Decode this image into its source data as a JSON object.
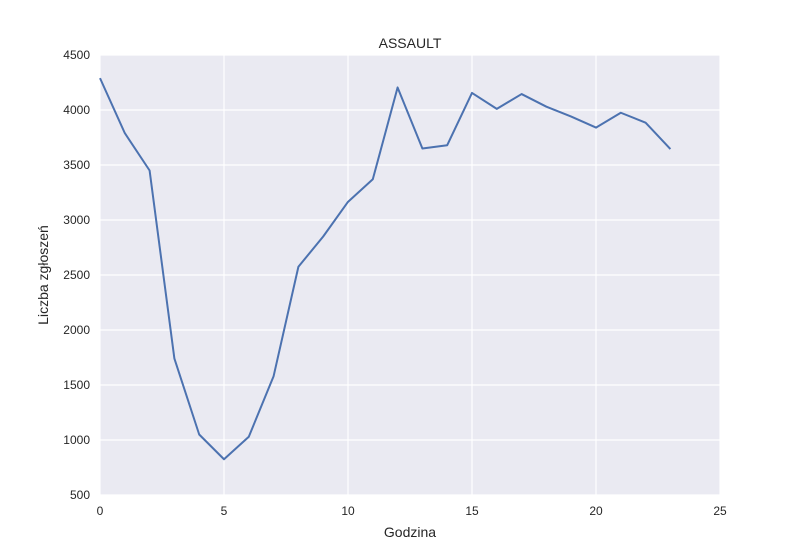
{
  "chart_data": {
    "type": "line",
    "title": "ASSAULT",
    "xlabel": "Godzina",
    "ylabel": "Liczba zgłoszeń",
    "xlim": [
      0,
      25
    ],
    "ylim": [
      500,
      4500
    ],
    "xticks": [
      0,
      5,
      10,
      15,
      20,
      25
    ],
    "yticks": [
      500,
      1000,
      1500,
      2000,
      2500,
      3000,
      3500,
      4000,
      4500
    ],
    "grid": true,
    "colors": {
      "line": "#4c72b0",
      "plot_bg": "#eaeaf2",
      "grid": "#ffffff"
    },
    "x": [
      0,
      1,
      2,
      3,
      4,
      5,
      6,
      7,
      8,
      9,
      10,
      11,
      12,
      13,
      14,
      15,
      16,
      17,
      18,
      19,
      20,
      21,
      22,
      23
    ],
    "series": [
      {
        "values": [
          4290,
          3790,
          3450,
          1740,
          1050,
          825,
          1030,
          1580,
          2575,
          2850,
          3165,
          3370,
          4205,
          3650,
          3680,
          4155,
          4010,
          4145,
          4030,
          3940,
          3840,
          3975,
          3885,
          3645
        ]
      }
    ]
  }
}
